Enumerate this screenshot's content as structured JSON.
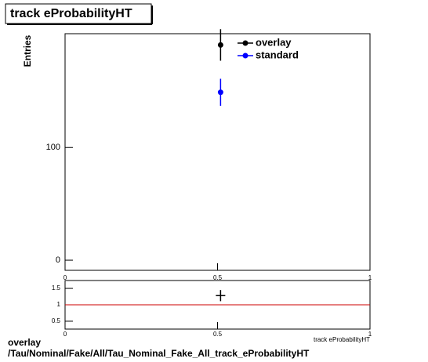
{
  "chart_data": [
    {
      "type": "errorbar",
      "title": "track eProbabilityHT",
      "ylabel": "Entries",
      "x": [
        0.51
      ],
      "series": [
        {
          "name": "overlay",
          "color": "#000000",
          "values": [
            191
          ],
          "errors": [
            14
          ]
        },
        {
          "name": "standard",
          "color": "#0000ff",
          "values": [
            149
          ],
          "errors": [
            12
          ]
        }
      ],
      "xlim": [
        0,
        1
      ],
      "xticks": [
        0,
        0.5,
        1
      ],
      "ylim": [
        -9,
        201
      ],
      "yticks": [
        0,
        100
      ]
    },
    {
      "type": "ratio",
      "xlabel": "track eProbabilityHT",
      "x": [
        0.51
      ],
      "series": [
        {
          "color": "#000000",
          "values": [
            1.28
          ],
          "errors": [
            0.17
          ]
        }
      ],
      "reference_line": 1,
      "reference_color": "#cc0000",
      "xlim": [
        0,
        1
      ],
      "xticks": [
        0,
        0.5,
        1
      ],
      "ylim": [
        0.26,
        1.74
      ],
      "yticks": [
        0.5,
        1,
        1.5
      ]
    }
  ],
  "footer": {
    "line1": "overlay",
    "line2": "/Tau/Nominal/Fake/All/Tau_Nominal_Fake_All_track_eProbabilityHT"
  }
}
